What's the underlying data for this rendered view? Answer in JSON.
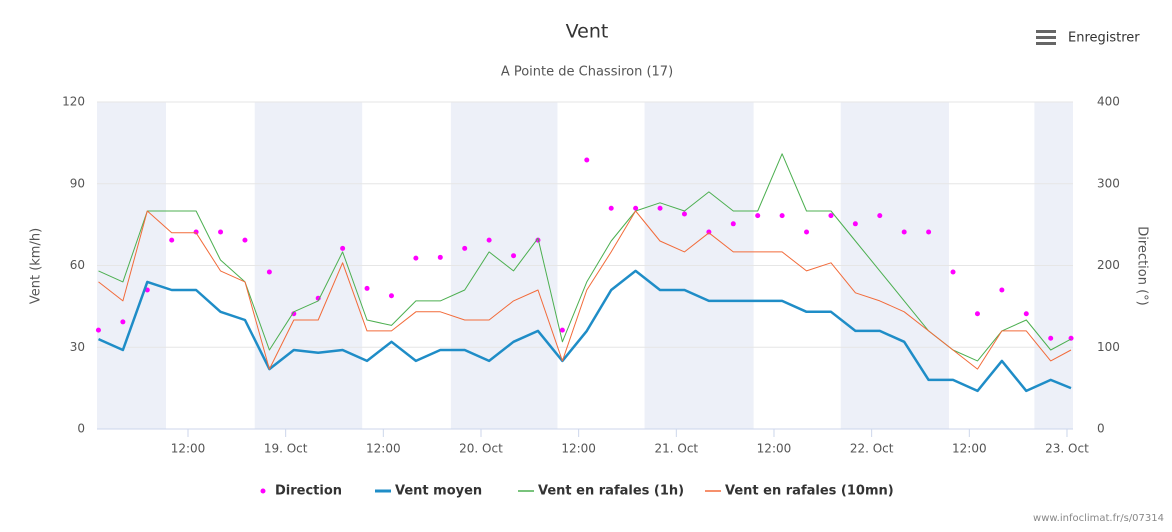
{
  "chart_data": {
    "type": "line",
    "title": "Vent",
    "subtitle": "A Pointe de Chassiron (17)",
    "button": "Enregistrer",
    "credit": "www.infoclimat.fr/s/07314",
    "y_label": "Vent (km/h)",
    "y2_label": "Direction (°)",
    "xlim": [
      0.82,
      120.74
    ],
    "xticks": [
      {
        "value": 12,
        "label": "12:00"
      },
      {
        "value": 24,
        "label": "19. Oct"
      },
      {
        "value": 36,
        "label": "12:00"
      },
      {
        "value": 48,
        "label": "20. Oct"
      },
      {
        "value": 60,
        "label": "12:00"
      },
      {
        "value": 72,
        "label": "21. Oct"
      },
      {
        "value": 84,
        "label": "12:00"
      },
      {
        "value": 96,
        "label": "22. Oct"
      },
      {
        "value": 108,
        "label": "12:00"
      },
      {
        "value": 120,
        "label": "23. Oct"
      }
    ],
    "ylim": [
      0,
      120
    ],
    "yticks": [
      0,
      30,
      60,
      90,
      120
    ],
    "y2lim": [
      0,
      400
    ],
    "y2ticks": [
      0,
      100,
      200,
      300,
      400
    ],
    "grid": true,
    "plot_bands": [
      [
        0.82,
        9.3
      ],
      [
        20.2,
        33.4
      ],
      [
        44.3,
        57.4
      ],
      [
        68.1,
        81.5
      ],
      [
        92.2,
        105.5
      ],
      [
        116.0,
        120.74
      ]
    ],
    "band_color": "#edf0f8",
    "x": [
      1,
      4,
      7,
      10,
      13,
      16,
      19,
      22,
      25,
      28,
      31,
      34,
      37,
      40,
      43,
      46,
      49,
      52,
      55,
      58,
      61,
      64,
      67,
      70,
      73,
      76,
      79,
      82,
      85,
      88,
      91,
      94,
      97,
      100,
      103,
      106,
      109,
      112,
      115,
      118,
      120.5
    ],
    "series": [
      {
        "name": "Direction",
        "type": "scatter",
        "axis": "y2",
        "color": "#ff00ff",
        "values": [
          121,
          131,
          170,
          231,
          241,
          241,
          231,
          192,
          141,
          160,
          221,
          172,
          163,
          209,
          210,
          221,
          231,
          212,
          231,
          121,
          329,
          270,
          270,
          270,
          263,
          241,
          251,
          261,
          261,
          241,
          261,
          251,
          261,
          241,
          241,
          192,
          141,
          170,
          141,
          111,
          111
        ]
      },
      {
        "name": "Vent moyen",
        "type": "line",
        "width": 2.5,
        "color": "#1f8dc7",
        "values": [
          33,
          29,
          54,
          51,
          51,
          43,
          40,
          22,
          29,
          28,
          29,
          25,
          32,
          25,
          29,
          29,
          25,
          32,
          36,
          25,
          36,
          51,
          58,
          51,
          51,
          47,
          47,
          47,
          47,
          43,
          43,
          36,
          36,
          32,
          18,
          18,
          14,
          25,
          14,
          18,
          15
        ]
      },
      {
        "name": "Vent en rafales (1h)",
        "type": "line",
        "width": 1,
        "color": "#4caf50",
        "values": [
          58,
          54,
          80,
          80,
          80,
          62,
          54,
          29,
          43,
          47,
          65,
          40,
          38,
          47,
          47,
          51,
          65,
          58,
          70,
          32,
          54,
          69,
          80,
          83,
          80,
          87,
          80,
          80,
          101,
          80,
          80,
          69,
          58,
          47,
          36,
          29,
          25,
          36,
          40,
          29,
          33
        ]
      },
      {
        "name": "Vent en rafales (10mn)",
        "type": "line",
        "width": 1,
        "color": "#f26b3a",
        "values": [
          54,
          47,
          80,
          72,
          72,
          58,
          54,
          22,
          40,
          40,
          61,
          36,
          36,
          43,
          43,
          40,
          40,
          47,
          51,
          25,
          51,
          65,
          80,
          69,
          65,
          72,
          65,
          65,
          65,
          58,
          61,
          50,
          47,
          43,
          36,
          29,
          22,
          36,
          36,
          25,
          29
        ]
      }
    ]
  }
}
